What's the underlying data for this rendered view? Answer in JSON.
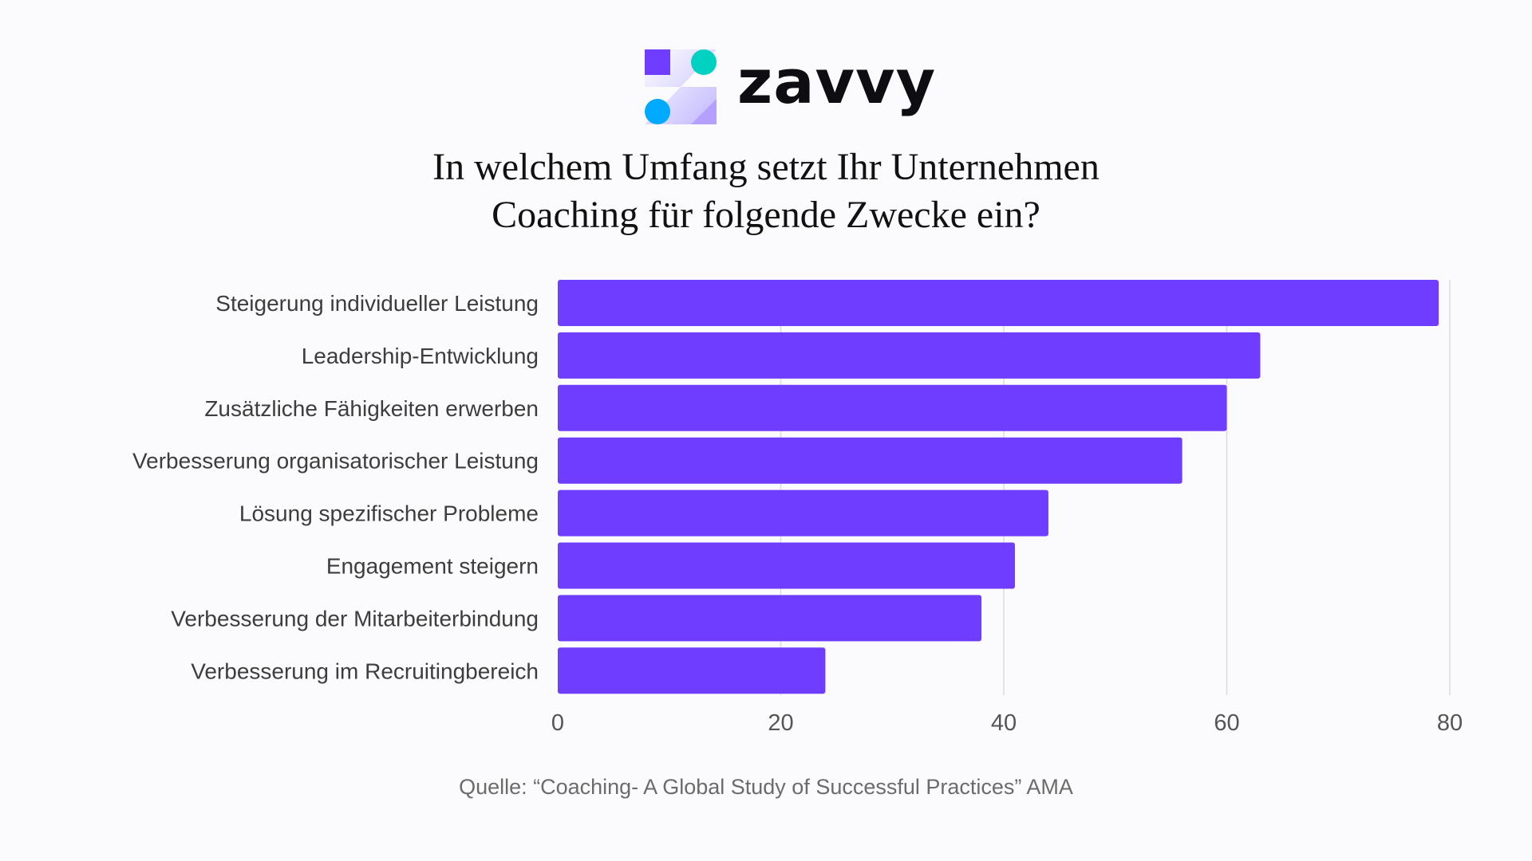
{
  "brand": {
    "name": "zavvy",
    "colors": {
      "square": "#6e3dff",
      "teal": "#00d1c1",
      "blue": "#00aaff",
      "triangle": "#b5a0ff"
    }
  },
  "title_lines": [
    "In welchem Umfang setzt Ihr Unternehmen",
    "Coaching für folgende Zwecke ein?"
  ],
  "source": "Quelle: “Coaching- A Global Study of Successful Practices” AMA",
  "chart_data": {
    "type": "bar",
    "orientation": "horizontal",
    "categories": [
      "Steigerung individueller Leistung",
      "Leadership-Entwicklung",
      "Zusätzliche Fähigkeiten erwerben",
      "Verbesserung organisatorischer Leistung",
      "Lösung spezifischer Probleme",
      "Engagement steigern",
      "Verbesserung der Mitarbeiterbindung",
      "Verbesserung im Recruitingbereich"
    ],
    "values": [
      79,
      63,
      60,
      56,
      44,
      41,
      38,
      24
    ],
    "xlim": [
      0,
      80
    ],
    "xticks": [
      "0",
      "20",
      "40",
      "60",
      "80"
    ],
    "grid": "vertical",
    "bar_color": "#6e3dff",
    "title": "",
    "xlabel": "",
    "ylabel": ""
  }
}
